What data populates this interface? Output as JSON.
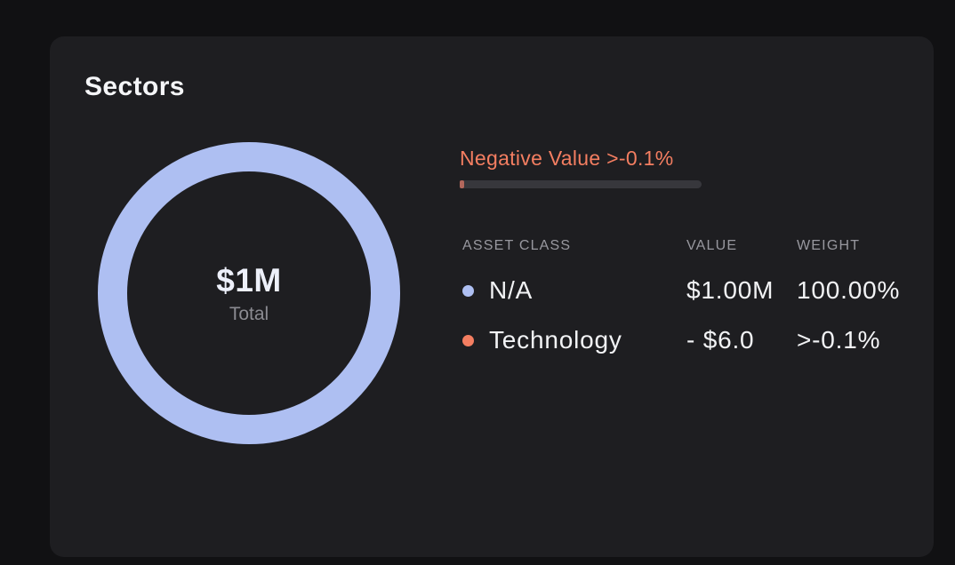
{
  "colors": {
    "page_bg": "#111113",
    "card_bg": "#1e1e21",
    "title_white": "#f5f6f8",
    "row_white": "#f2f3f5",
    "center_white": "#edf0fa",
    "header_gray": "#98989f",
    "caption_gray": "#8b8b91",
    "coral": "#f47e61",
    "coral_muted": "#b2675c",
    "track_gray": "#37373c",
    "blue": "#aebff2"
  },
  "card": {
    "title": "Sectors"
  },
  "donut": {
    "value": "$1M",
    "caption": "Total"
  },
  "negative_note": {
    "label": "Negative Value >-0.1%",
    "bar_fill_pct": 1.8
  },
  "table": {
    "headers": [
      "ASSET CLASS",
      "VALUE",
      "WEIGHT"
    ],
    "rows": [
      {
        "asset": "N/A",
        "value": "$1.00M",
        "weight": "100.00%",
        "color": "#aebff2"
      },
      {
        "asset": "Technology",
        "value": "- $6.0",
        "weight": ">-0.1%",
        "color": "#f47e61"
      }
    ]
  },
  "chart_data": {
    "type": "pie",
    "title": "Sectors",
    "subtype": "donut",
    "center_value": "$1M",
    "center_caption": "Total",
    "categories": [
      "N/A",
      "Technology"
    ],
    "values": [
      100.0,
      -0.1
    ],
    "series": [
      {
        "name": "N/A",
        "value_text": "$1.00M",
        "weight_text": "100.00%",
        "color": "#aebff2",
        "fraction": 1.0
      },
      {
        "name": "Technology",
        "value_text": "- $6.0",
        "weight_text": ">-0.1%",
        "color": "#f47e61",
        "fraction": -0.001
      }
    ],
    "annotation": "Negative Value >-0.1%",
    "legend_position": "right-table"
  }
}
